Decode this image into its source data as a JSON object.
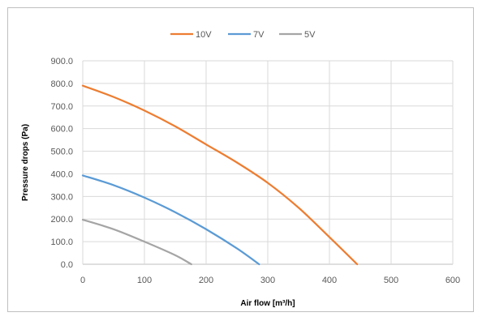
{
  "chart_data": {
    "type": "line",
    "xlabel": "Air flow [m³/h]",
    "ylabel": "Pressure drops (Pa)",
    "xlim": [
      0,
      600
    ],
    "ylim": [
      0,
      900
    ],
    "x_ticks": [
      "0",
      "100",
      "200",
      "300",
      "400",
      "500",
      "600"
    ],
    "y_ticks": [
      "0.0",
      "100.0",
      "200.0",
      "300.0",
      "400.0",
      "500.0",
      "600.0",
      "700.0",
      "800.0",
      "900.0"
    ],
    "grid": true,
    "legend_position": "top",
    "series": [
      {
        "name": "10V",
        "color": "#ED7D31",
        "x": [
          0,
          50,
          100,
          150,
          200,
          250,
          300,
          350,
          400,
          445
        ],
        "y": [
          790,
          740,
          680,
          610,
          530,
          450,
          360,
          250,
          120,
          0
        ]
      },
      {
        "name": "7V",
        "color": "#5B9BD5",
        "x": [
          0,
          50,
          100,
          150,
          200,
          250,
          286
        ],
        "y": [
          393,
          350,
          295,
          230,
          155,
          70,
          0
        ]
      },
      {
        "name": "5V",
        "color": "#A5A5A5",
        "x": [
          0,
          50,
          100,
          150,
          176
        ],
        "y": [
          197,
          155,
          100,
          40,
          0
        ]
      }
    ]
  }
}
